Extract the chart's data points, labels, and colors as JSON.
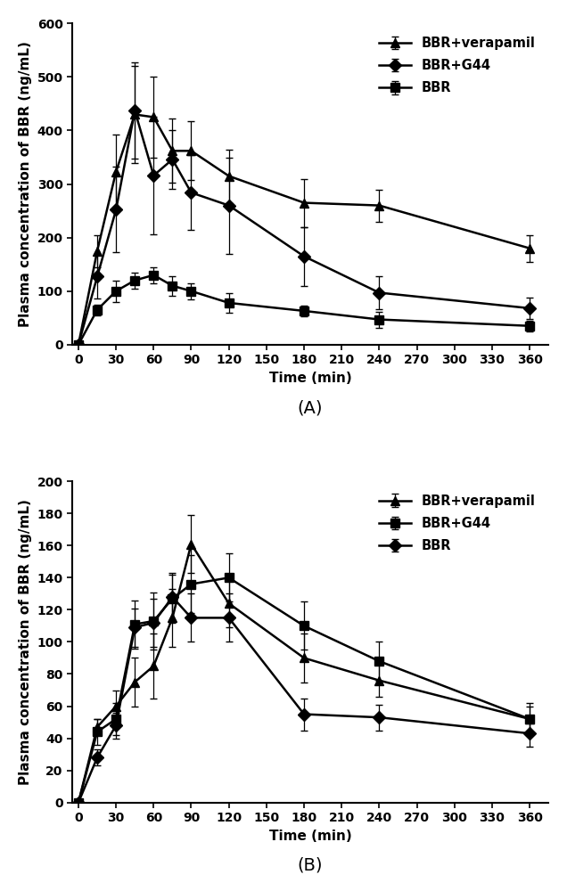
{
  "panel_A": {
    "time": [
      0,
      15,
      30,
      45,
      60,
      75,
      90,
      120,
      180,
      240,
      360
    ],
    "bbr_verapamil": {
      "y": [
        0,
        175,
        323,
        430,
        425,
        362,
        362,
        315,
        265,
        260,
        180
      ],
      "yerr": [
        0,
        30,
        70,
        90,
        75,
        60,
        55,
        50,
        45,
        30,
        25
      ],
      "label": "BBR+verapamil",
      "marker": "^"
    },
    "bbr_g44": {
      "y": [
        0,
        127,
        252,
        437,
        316,
        346,
        284,
        260,
        165,
        97,
        68
      ],
      "yerr": [
        0,
        40,
        80,
        90,
        110,
        55,
        70,
        90,
        55,
        30,
        20
      ],
      "label": "BBR+G44",
      "marker": "D"
    },
    "bbr": {
      "y": [
        0,
        65,
        100,
        120,
        130,
        110,
        100,
        78,
        63,
        47,
        35
      ],
      "yerr": [
        0,
        10,
        20,
        15,
        15,
        18,
        15,
        18,
        10,
        15,
        10
      ],
      "label": "BBR",
      "marker": "s"
    },
    "ylabel": "Plasma concentration of BBR (ng/mL)",
    "xlabel": "Time (min)",
    "ylim": [
      0,
      600
    ],
    "yticks": [
      0,
      100,
      200,
      300,
      400,
      500,
      600
    ],
    "xticks": [
      0,
      30,
      60,
      90,
      120,
      150,
      180,
      210,
      240,
      270,
      300,
      330,
      360
    ],
    "label": "(A)"
  },
  "panel_B": {
    "time": [
      0,
      15,
      30,
      45,
      60,
      75,
      90,
      120,
      180,
      240,
      360
    ],
    "bbr_verapamil": {
      "y": [
        0,
        47,
        60,
        75,
        85,
        115,
        161,
        124,
        90,
        76,
        52
      ],
      "yerr": [
        0,
        5,
        10,
        15,
        20,
        18,
        18,
        15,
        15,
        10,
        8
      ],
      "label": "BBR+verapamil",
      "marker": "^"
    },
    "bbr_g44": {
      "y": [
        0,
        44,
        52,
        111,
        113,
        127,
        136,
        140,
        110,
        88,
        52
      ],
      "yerr": [
        0,
        8,
        10,
        15,
        18,
        15,
        18,
        15,
        15,
        12,
        10
      ],
      "label": "BBR+G44",
      "marker": "s"
    },
    "bbr": {
      "y": [
        0,
        28,
        48,
        109,
        112,
        128,
        115,
        115,
        55,
        53,
        43
      ],
      "yerr": [
        0,
        5,
        8,
        12,
        15,
        15,
        15,
        15,
        10,
        8,
        8
      ],
      "label": "BBR",
      "marker": "D"
    },
    "ylabel": "Plasma concentration of BBR (ng/mL)",
    "xlabel": "Time (min)",
    "ylim": [
      0,
      200
    ],
    "yticks": [
      0,
      20,
      40,
      60,
      80,
      100,
      120,
      140,
      160,
      180,
      200
    ],
    "xticks": [
      0,
      30,
      60,
      90,
      120,
      150,
      180,
      210,
      240,
      270,
      300,
      330,
      360
    ],
    "label": "(B)"
  },
  "line_color": "#000000",
  "capsize": 3,
  "linewidth": 1.8,
  "markersize": 7,
  "fontsize_label": 11,
  "fontsize_tick": 10,
  "fontsize_legend": 10.5,
  "fontsize_sublabel": 14
}
